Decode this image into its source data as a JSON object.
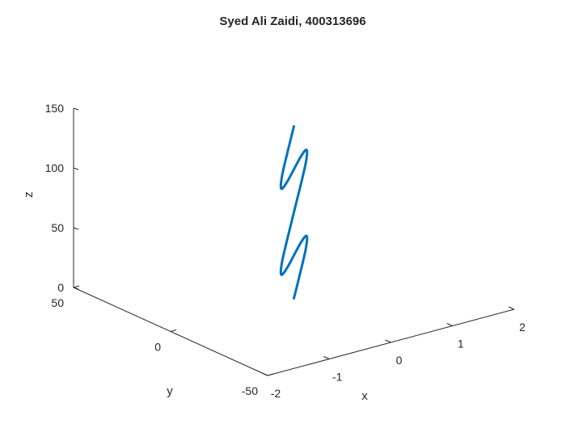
{
  "chart_data": {
    "type": "line",
    "title": "Syed Ali Zaidi, 400313696",
    "xlabel": "x",
    "ylabel": "y",
    "zlabel": "z",
    "xlim": [
      -2,
      2
    ],
    "ylim": [
      -50,
      50
    ],
    "zlim": [
      0,
      160
    ],
    "x_ticks": [
      "-2",
      "-1",
      "0",
      "1",
      "2"
    ],
    "y_ticks": [
      "-50",
      "0",
      "50"
    ],
    "z_ticks": [
      "0",
      "50",
      "100",
      "150"
    ],
    "grid": false,
    "line_color": "#0072BD",
    "series": [
      {
        "x": [
          0.0,
          0.5,
          0.87,
          1.0,
          0.87,
          0.5,
          0.0,
          -0.5,
          -0.87,
          -1.0,
          -0.87,
          -0.5,
          0.0,
          0.5,
          0.87,
          1.0,
          0.87,
          0.5,
          0.0,
          -0.5,
          -0.87,
          -1.0,
          -0.87,
          -0.5,
          0.0
        ],
        "y": [
          0,
          12.5,
          21.7,
          25,
          21.7,
          12.5,
          0,
          -12.5,
          -21.7,
          -25,
          -21.7,
          -12.5,
          0,
          12.5,
          21.7,
          25,
          21.7,
          12.5,
          0,
          -12.5,
          -21.7,
          -25,
          -21.7,
          -12.5,
          0
        ],
        "z": [
          0,
          6,
          12,
          18,
          24,
          30,
          36,
          42,
          48,
          54,
          60,
          66,
          72,
          78,
          84,
          90,
          96,
          102,
          108,
          114,
          120,
          126,
          132,
          138,
          144
        ]
      }
    ]
  }
}
